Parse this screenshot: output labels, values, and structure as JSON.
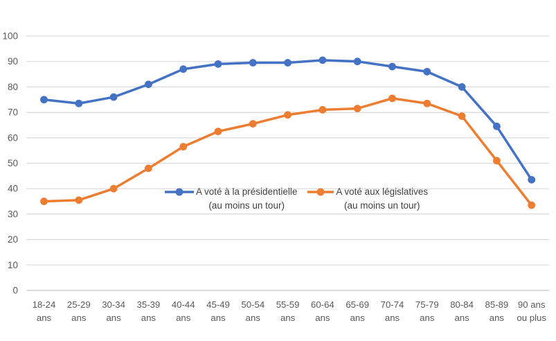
{
  "chart_data": {
    "type": "line",
    "title": "",
    "xlabel": "",
    "ylabel": "",
    "categories": [
      "18-24 ans",
      "25-29 ans",
      "30-34 ans",
      "35-39 ans",
      "40-44 ans",
      "45-49 ans",
      "50-54 ans",
      "55-59 ans",
      "60-64 ans",
      "65-69 ans",
      "70-74 ans",
      "75-79 ans",
      "80-84 ans",
      "85-89 ans",
      "90 ans ou plus"
    ],
    "category_label_lines": [
      [
        "18-24",
        "ans"
      ],
      [
        "25-29",
        "ans"
      ],
      [
        "30-34",
        "ans"
      ],
      [
        "35-39",
        "ans"
      ],
      [
        "40-44",
        "ans"
      ],
      [
        "45-49",
        "ans"
      ],
      [
        "50-54",
        "ans"
      ],
      [
        "55-59",
        "ans"
      ],
      [
        "60-64",
        "ans"
      ],
      [
        "65-69",
        "ans"
      ],
      [
        "70-74",
        "ans"
      ],
      [
        "75-79",
        "ans"
      ],
      [
        "80-84",
        "ans"
      ],
      [
        "85-89",
        "ans"
      ],
      [
        "90 ans",
        "ou plus"
      ]
    ],
    "series": [
      {
        "name": "A voté à la présidentielle (au moins un tour)",
        "legend_lines": [
          "A voté à la présidentielle",
          "(au moins un tour)"
        ],
        "color": "#4472C4",
        "values": [
          75,
          73.5,
          76,
          81,
          87,
          89,
          89.5,
          89.5,
          90.5,
          90,
          88,
          86,
          80,
          64.5,
          43.5
        ]
      },
      {
        "name": "A voté aux législatives (au moins un tour)",
        "legend_lines": [
          "A voté aux législatives",
          "(au moins un tour)"
        ],
        "color": "#ED7D31",
        "values": [
          35,
          35.5,
          40,
          48,
          56.5,
          62.5,
          65.5,
          69,
          71,
          71.5,
          75.5,
          73.5,
          68.5,
          51,
          33.5
        ]
      }
    ],
    "yticks": [
      0,
      10,
      20,
      30,
      40,
      50,
      60,
      70,
      80,
      90,
      100
    ],
    "ylim": [
      0,
      100
    ],
    "grid": true,
    "legend_position": "inside-plot-center",
    "colors": {
      "background": "#FFFFFF",
      "gridline": "#D9D9D9",
      "axis_line": "#C6C6C6",
      "axis_label": "#595959",
      "legend_text": "#3F3F3F"
    }
  }
}
